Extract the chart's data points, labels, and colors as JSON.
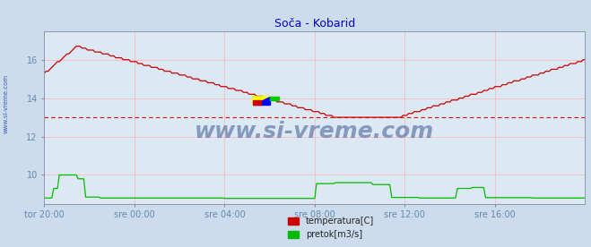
{
  "title": "Soča - Kobarid",
  "title_color": "#0000cc",
  "background_color": "#ccdcec",
  "plot_bg_color": "#dce8f4",
  "grid_color": "#ffb0b0",
  "border_color": "#6688aa",
  "x_tick_labels": [
    "tor 20:00",
    "sre 00:00",
    "sre 04:00",
    "sre 08:00",
    "sre 12:00",
    "sre 16:00"
  ],
  "ylim": [
    8.5,
    17.5
  ],
  "yticks": [
    10,
    12,
    14,
    16
  ],
  "avg_line_y": 13.0,
  "avg_line_color": "#dd0000",
  "watermark": "www.si-vreme.com",
  "watermark_color": "#1a3a8a",
  "left_label": "www.si-vreme.com",
  "temp_color": "#cc0000",
  "flow_color": "#00bb00",
  "legend_temp": "temperatura[C]",
  "legend_flow": "pretok[m3/s]",
  "n_points": 289,
  "flow_data_segments": [
    [
      0,
      5,
      8.8
    ],
    [
      5,
      8,
      9.3
    ],
    [
      8,
      18,
      10.0
    ],
    [
      18,
      22,
      9.8
    ],
    [
      22,
      30,
      8.85
    ],
    [
      30,
      96,
      8.8
    ],
    [
      96,
      145,
      8.78
    ],
    [
      145,
      155,
      9.55
    ],
    [
      155,
      175,
      9.6
    ],
    [
      175,
      185,
      9.5
    ],
    [
      185,
      200,
      8.83
    ],
    [
      200,
      220,
      8.8
    ],
    [
      220,
      228,
      9.3
    ],
    [
      228,
      235,
      9.35
    ],
    [
      235,
      260,
      8.82
    ],
    [
      260,
      289,
      8.8
    ]
  ]
}
